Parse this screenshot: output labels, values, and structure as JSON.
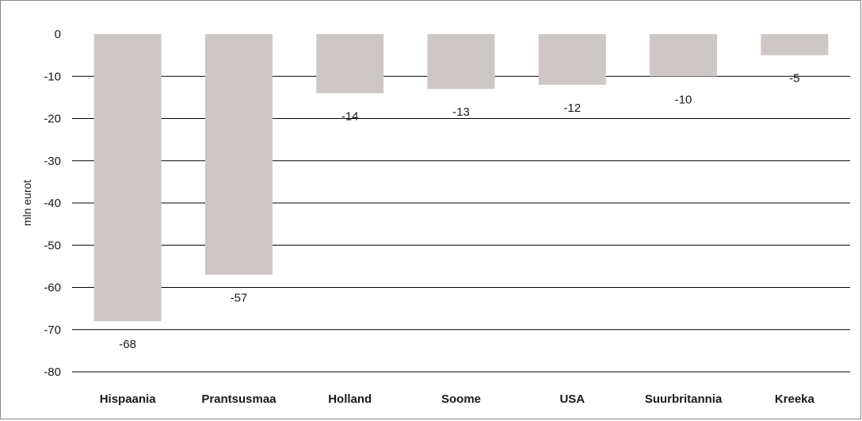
{
  "chart_data": {
    "type": "bar",
    "categories": [
      "Hispaania",
      "Prantsusmaa",
      "Holland",
      "Soome",
      "USA",
      "Suurbritannia",
      "Kreeka"
    ],
    "values": [
      -68,
      -57,
      -14,
      -13,
      -12,
      -10,
      -5
    ],
    "data_labels": [
      "-68",
      "-57",
      "-14",
      "-13",
      "-12",
      "-10",
      "-5"
    ],
    "title": "",
    "xlabel": "",
    "ylabel": "mln eurot",
    "ylim": [
      -80,
      0
    ],
    "yticks": [
      0,
      -10,
      -20,
      -30,
      -40,
      -50,
      -60,
      -70,
      -80
    ],
    "grid": true,
    "legend": "none",
    "colors": {
      "bar": "#cdc8c5",
      "grid": "#000000",
      "text": "#1a1a1a"
    }
  }
}
